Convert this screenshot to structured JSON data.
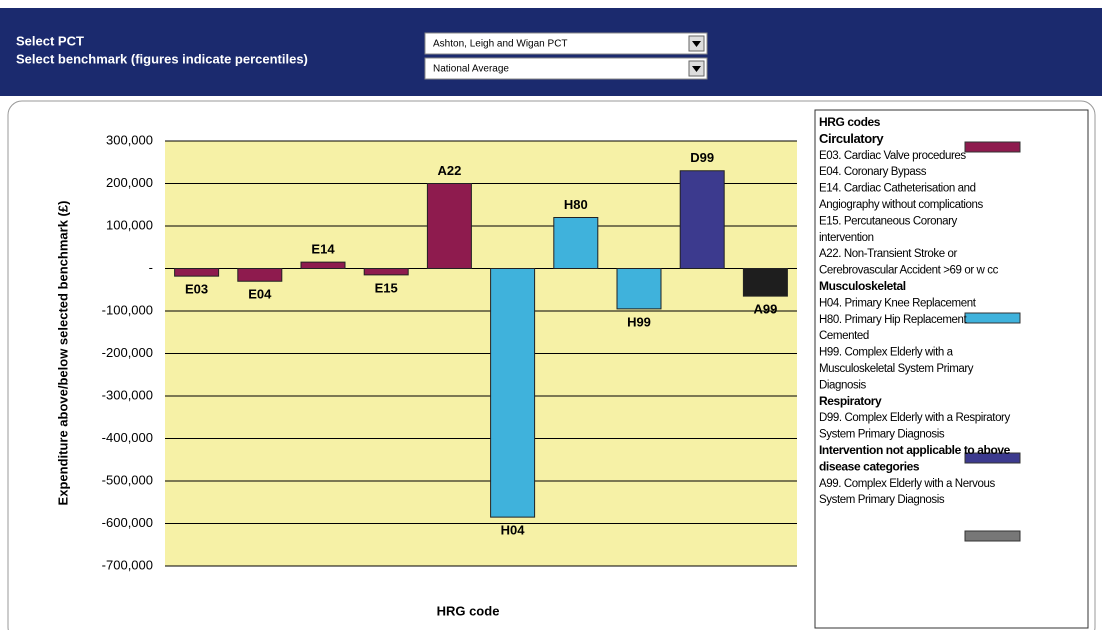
{
  "header": {
    "pct_label": "Select PCT",
    "benchmark_label": "Select benchmark (figures indicate percentiles)",
    "pct_value": "Ashton, Leigh and Wigan PCT",
    "benchmark_value": "National Average"
  },
  "chart_data": {
    "type": "bar",
    "categories": [
      "E03",
      "E04",
      "E14",
      "E15",
      "A22",
      "H04",
      "H80",
      "H99",
      "D99",
      "A99"
    ],
    "values": [
      -18000,
      -30000,
      15000,
      -15000,
      200000,
      -585000,
      120000,
      -95000,
      230000,
      -65000
    ],
    "colors": [
      "#8e1b4e",
      "#8e1b4e",
      "#8e1b4e",
      "#8e1b4e",
      "#8e1b4e",
      "#3fb2dc",
      "#3fb2dc",
      "#3fb2dc",
      "#3c3a8e",
      "#1e1e1e"
    ],
    "y_label": "Expenditure above/below selected benchmark (£)",
    "x_label": "HRG code",
    "ylim": [
      -700000,
      300000
    ],
    "yticks": [
      {
        "value": -700000,
        "label": "-700,000"
      },
      {
        "value": -600000,
        "label": "-600,000"
      },
      {
        "value": -500000,
        "label": "-500,000"
      },
      {
        "value": -400000,
        "label": "-400,000"
      },
      {
        "value": -300000,
        "label": "-300,000"
      },
      {
        "value": -200000,
        "label": "-200,000"
      },
      {
        "value": -100000,
        "label": "-100,000"
      },
      {
        "value": 0,
        "label": "-"
      },
      {
        "value": 100000,
        "label": "100,000"
      },
      {
        "value": 200000,
        "label": "200,000"
      },
      {
        "value": 300000,
        "label": "300,000"
      }
    ],
    "grid": true
  },
  "legend": {
    "title": "HRG codes",
    "groups": [
      {
        "name": "Circulatory",
        "items": [
          [
            "E03. Cardiac Valve procedures"
          ],
          [
            "E04. Coronary Bypass"
          ],
          [
            "E14. Cardiac Catheterisation and",
            "Angiography without complications"
          ],
          [
            "E15. Percutaneous Coronary",
            "intervention"
          ],
          [
            "A22. Non-Transient Stroke or",
            "Cerebrovascular Accident >69 or w cc"
          ]
        ]
      },
      {
        "name": "Musculoskeletal",
        "items": [
          [
            "H04. Primary Knee Replacement"
          ],
          [
            "H80. Primary Hip Replacement",
            "Cemented"
          ],
          [
            "H99. Complex Elderly with a",
            "Musculoskeletal System Primary",
            "Diagnosis"
          ]
        ]
      },
      {
        "name": "Respiratory",
        "items": [
          [
            "D99. Complex Elderly with a Respiratory",
            "System Primary Diagnosis"
          ]
        ]
      },
      {
        "name": "Intervention not applicable to above disease categories",
        "items": [
          [
            "A99. Complex Elderly with a Nervous",
            "System Primary Diagnosis"
          ]
        ]
      }
    ]
  }
}
